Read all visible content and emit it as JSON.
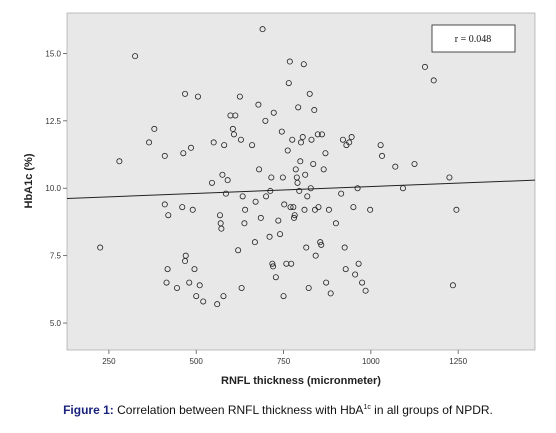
{
  "chart_data": {
    "type": "scatter",
    "xlabel": "RNFL thickness (micronmeter)",
    "ylabel": "HbA1c (%)",
    "x_ticks": [
      "250",
      "500",
      "750",
      "1000",
      "1250"
    ],
    "y_ticks": [
      "5.0",
      "7.5",
      "10.0",
      "12.5",
      "15.0"
    ],
    "xlim": [
      130,
      1470
    ],
    "ylim": [
      4.0,
      16.5
    ],
    "annotation": "r = 0.048",
    "grid": false,
    "trendline": {
      "x": [
        130,
        1470
      ],
      "y": [
        9.62,
        10.3
      ]
    },
    "points": [
      {
        "x": 225,
        "y": 7.8
      },
      {
        "x": 280,
        "y": 11.0
      },
      {
        "x": 325,
        "y": 14.9
      },
      {
        "x": 365,
        "y": 11.7
      },
      {
        "x": 380,
        "y": 12.2
      },
      {
        "x": 410,
        "y": 11.2
      },
      {
        "x": 410,
        "y": 9.4
      },
      {
        "x": 415,
        "y": 6.5
      },
      {
        "x": 418,
        "y": 7.0
      },
      {
        "x": 420,
        "y": 9.0
      },
      {
        "x": 445,
        "y": 6.3
      },
      {
        "x": 460,
        "y": 9.3
      },
      {
        "x": 463,
        "y": 11.3
      },
      {
        "x": 468,
        "y": 13.5
      },
      {
        "x": 468,
        "y": 7.3
      },
      {
        "x": 470,
        "y": 7.5
      },
      {
        "x": 480,
        "y": 6.5
      },
      {
        "x": 485,
        "y": 11.5
      },
      {
        "x": 490,
        "y": 9.2
      },
      {
        "x": 495,
        "y": 7.0
      },
      {
        "x": 500,
        "y": 6.0
      },
      {
        "x": 505,
        "y": 13.4
      },
      {
        "x": 510,
        "y": 6.4
      },
      {
        "x": 520,
        "y": 5.8
      },
      {
        "x": 545,
        "y": 10.2
      },
      {
        "x": 550,
        "y": 11.7
      },
      {
        "x": 560,
        "y": 5.7
      },
      {
        "x": 568,
        "y": 9.0
      },
      {
        "x": 570,
        "y": 8.7
      },
      {
        "x": 572,
        "y": 8.5
      },
      {
        "x": 575,
        "y": 10.5
      },
      {
        "x": 578,
        "y": 6.0
      },
      {
        "x": 580,
        "y": 11.6
      },
      {
        "x": 585,
        "y": 9.8
      },
      {
        "x": 590,
        "y": 10.3
      },
      {
        "x": 598,
        "y": 12.7
      },
      {
        "x": 605,
        "y": 12.2
      },
      {
        "x": 608,
        "y": 12.0
      },
      {
        "x": 612,
        "y": 12.7
      },
      {
        "x": 620,
        "y": 7.7
      },
      {
        "x": 625,
        "y": 13.4
      },
      {
        "x": 628,
        "y": 11.8
      },
      {
        "x": 630,
        "y": 6.3
      },
      {
        "x": 633,
        "y": 9.7
      },
      {
        "x": 638,
        "y": 8.7
      },
      {
        "x": 640,
        "y": 9.2
      },
      {
        "x": 660,
        "y": 11.6
      },
      {
        "x": 668,
        "y": 8.0
      },
      {
        "x": 670,
        "y": 9.5
      },
      {
        "x": 678,
        "y": 13.1
      },
      {
        "x": 680,
        "y": 10.7
      },
      {
        "x": 685,
        "y": 8.9
      },
      {
        "x": 690,
        "y": 15.9
      },
      {
        "x": 698,
        "y": 12.5
      },
      {
        "x": 700,
        "y": 9.7
      },
      {
        "x": 710,
        "y": 8.2
      },
      {
        "x": 712,
        "y": 9.9
      },
      {
        "x": 715,
        "y": 10.4
      },
      {
        "x": 718,
        "y": 7.2
      },
      {
        "x": 720,
        "y": 7.1
      },
      {
        "x": 722,
        "y": 12.8
      },
      {
        "x": 728,
        "y": 6.7
      },
      {
        "x": 735,
        "y": 8.8
      },
      {
        "x": 740,
        "y": 8.3
      },
      {
        "x": 745,
        "y": 12.1
      },
      {
        "x": 748,
        "y": 10.4
      },
      {
        "x": 750,
        "y": 6.0
      },
      {
        "x": 752,
        "y": 9.4
      },
      {
        "x": 758,
        "y": 7.2
      },
      {
        "x": 762,
        "y": 11.4
      },
      {
        "x": 765,
        "y": 13.9
      },
      {
        "x": 768,
        "y": 14.7
      },
      {
        "x": 770,
        "y": 9.3
      },
      {
        "x": 772,
        "y": 7.2
      },
      {
        "x": 775,
        "y": 11.8
      },
      {
        "x": 778,
        "y": 9.3
      },
      {
        "x": 780,
        "y": 8.9
      },
      {
        "x": 782,
        "y": 9.0
      },
      {
        "x": 785,
        "y": 10.7
      },
      {
        "x": 788,
        "y": 10.4
      },
      {
        "x": 790,
        "y": 10.2
      },
      {
        "x": 792,
        "y": 13.0
      },
      {
        "x": 795,
        "y": 9.9
      },
      {
        "x": 798,
        "y": 11.0
      },
      {
        "x": 800,
        "y": 11.7
      },
      {
        "x": 805,
        "y": 11.9
      },
      {
        "x": 808,
        "y": 14.6
      },
      {
        "x": 810,
        "y": 9.2
      },
      {
        "x": 812,
        "y": 10.5
      },
      {
        "x": 815,
        "y": 7.8
      },
      {
        "x": 818,
        "y": 9.7
      },
      {
        "x": 822,
        "y": 6.3
      },
      {
        "x": 825,
        "y": 13.5
      },
      {
        "x": 828,
        "y": 10.0
      },
      {
        "x": 830,
        "y": 11.8
      },
      {
        "x": 835,
        "y": 10.9
      },
      {
        "x": 838,
        "y": 12.9
      },
      {
        "x": 840,
        "y": 9.2
      },
      {
        "x": 842,
        "y": 7.5
      },
      {
        "x": 848,
        "y": 12.0
      },
      {
        "x": 850,
        "y": 9.3
      },
      {
        "x": 855,
        "y": 8.0
      },
      {
        "x": 858,
        "y": 7.9
      },
      {
        "x": 860,
        "y": 12.0
      },
      {
        "x": 865,
        "y": 10.7
      },
      {
        "x": 870,
        "y": 11.3
      },
      {
        "x": 872,
        "y": 6.5
      },
      {
        "x": 880,
        "y": 9.2
      },
      {
        "x": 885,
        "y": 6.1
      },
      {
        "x": 900,
        "y": 8.7
      },
      {
        "x": 915,
        "y": 9.8
      },
      {
        "x": 920,
        "y": 11.8
      },
      {
        "x": 925,
        "y": 7.8
      },
      {
        "x": 928,
        "y": 7.0
      },
      {
        "x": 930,
        "y": 11.6
      },
      {
        "x": 938,
        "y": 11.7
      },
      {
        "x": 945,
        "y": 11.9
      },
      {
        "x": 950,
        "y": 9.3
      },
      {
        "x": 955,
        "y": 6.8
      },
      {
        "x": 962,
        "y": 10.0
      },
      {
        "x": 965,
        "y": 7.2
      },
      {
        "x": 975,
        "y": 6.5
      },
      {
        "x": 985,
        "y": 6.2
      },
      {
        "x": 998,
        "y": 9.2
      },
      {
        "x": 1028,
        "y": 11.6
      },
      {
        "x": 1032,
        "y": 11.2
      },
      {
        "x": 1070,
        "y": 10.8
      },
      {
        "x": 1092,
        "y": 10.0
      },
      {
        "x": 1125,
        "y": 10.9
      },
      {
        "x": 1155,
        "y": 14.5
      },
      {
        "x": 1180,
        "y": 14.0
      },
      {
        "x": 1225,
        "y": 10.4
      },
      {
        "x": 1235,
        "y": 6.4
      },
      {
        "x": 1245,
        "y": 9.2
      }
    ]
  },
  "caption": {
    "bold": "Figure 1:",
    "text_before_sup": " Correlation between RNFL thickness with HbA",
    "sup": "1c",
    "text_after_sup": " in all groups of NPDR."
  },
  "colors": {
    "plot_bg": "#e8e8e8",
    "marker": "#222222",
    "line": "#222222",
    "caption_accent": "#1a237e"
  }
}
